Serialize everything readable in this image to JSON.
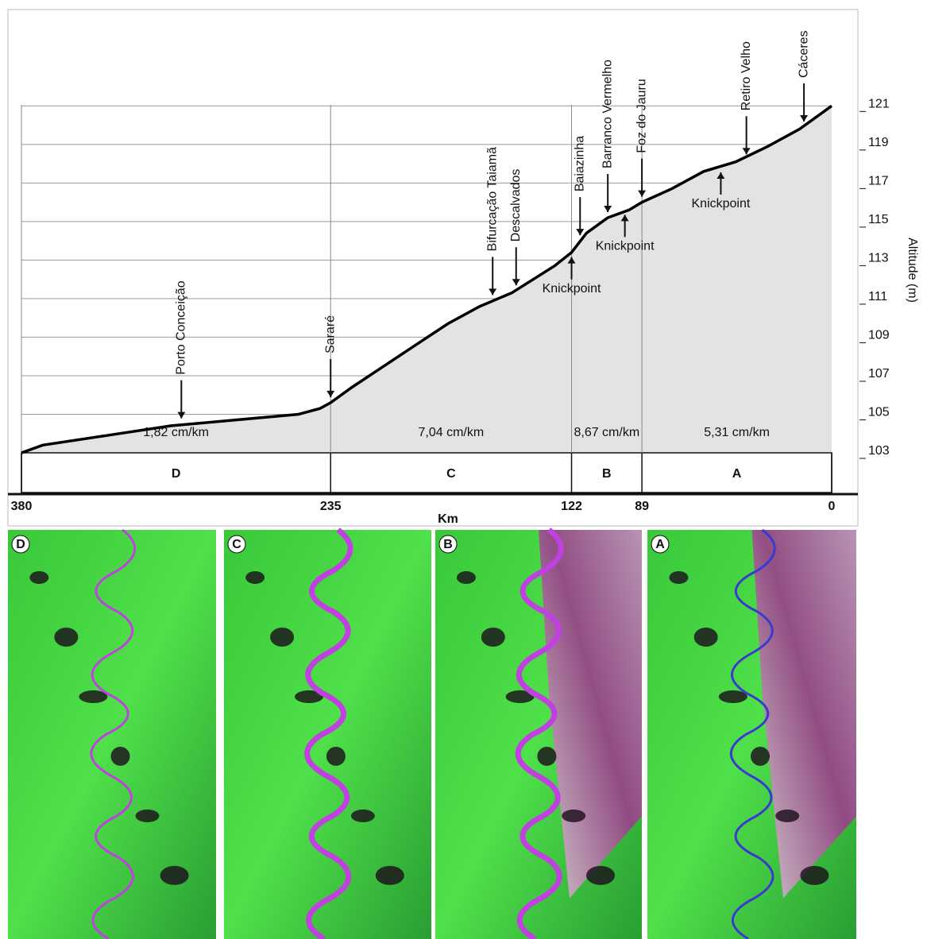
{
  "chart_data": {
    "type": "line",
    "x_label": "Km",
    "y_label": "Altitude (m)",
    "x": [
      380,
      370,
      340,
      310,
      280,
      250,
      240,
      235,
      225,
      210,
      195,
      180,
      165,
      150,
      140,
      130,
      122,
      115,
      105,
      95,
      89,
      75,
      60,
      45,
      30,
      15,
      0
    ],
    "values": [
      103,
      103.4,
      103.9,
      104.4,
      104.7,
      105.0,
      105.3,
      105.6,
      106.4,
      107.5,
      108.6,
      109.7,
      110.6,
      111.3,
      112.0,
      112.7,
      113.4,
      114.4,
      115.2,
      115.6,
      116.0,
      116.7,
      117.6,
      118.1,
      118.9,
      119.8,
      121
    ],
    "color": "#000000",
    "fill": "#e3e3e3",
    "xlim": [
      380,
      0
    ],
    "xticks": [
      380,
      235,
      122,
      89,
      0
    ],
    "ylim": [
      103,
      126
    ],
    "yticks": [
      103,
      105,
      107,
      109,
      111,
      113,
      115,
      117,
      119,
      121
    ],
    "grid": true,
    "annotations": [
      {
        "text": "Porto Conceição",
        "x": 305,
        "y": 104.5
      },
      {
        "text": "Sararé",
        "x": 235,
        "y": 105.6
      },
      {
        "text": "Bifurcação Taiamã",
        "x": 159,
        "y": 110.9
      },
      {
        "text": "Descalvados",
        "x": 148,
        "y": 111.4
      },
      {
        "text": "Baiazinha",
        "x": 118,
        "y": 114.0
      },
      {
        "text": "Barranco Vermelho",
        "x": 105,
        "y": 115.2
      },
      {
        "text": "Foz do Jauru",
        "x": 89,
        "y": 116.0
      },
      {
        "text": "Retiro Velho",
        "x": 40,
        "y": 118.2
      },
      {
        "text": "Cáceres",
        "x": 13,
        "y": 119.9
      }
    ],
    "knickpoints": [
      {
        "text": "Knickpoint",
        "x": 122,
        "y": 113.4
      },
      {
        "text": "Knickpoint",
        "x": 97,
        "y": 115.6
      },
      {
        "text": "Knickpoint",
        "x": 52,
        "y": 117.8
      }
    ],
    "segments": [
      {
        "name": "D",
        "gradient": "1,82 cm/km",
        "start": 380,
        "end": 235
      },
      {
        "name": "C",
        "gradient": "7,04 cm/km",
        "start": 235,
        "end": 122
      },
      {
        "name": "B",
        "gradient": "8,67 cm/km",
        "start": 122,
        "end": 89
      },
      {
        "name": "A",
        "gradient": "5,31 cm/km",
        "start": 89,
        "end": 0
      }
    ]
  },
  "image_panels": [
    "D",
    "C",
    "B",
    "A"
  ]
}
